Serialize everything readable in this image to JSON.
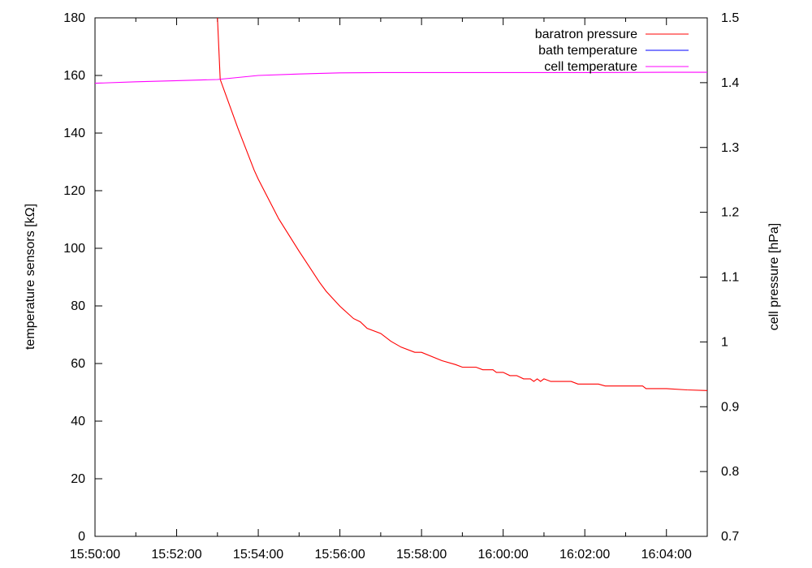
{
  "chart_data": {
    "type": "line",
    "title": "",
    "xlabel": "",
    "ylabel": "temperature sensors [kΩ]",
    "y2label": "cell pressure [hPa]",
    "x_ticks": [
      "15:50:00",
      "15:52:00",
      "15:54:00",
      "15:56:00",
      "15:58:00",
      "16:00:00",
      "16:02:00",
      "16:04:00"
    ],
    "y_ticks": [
      "0",
      "20",
      "40",
      "60",
      "80",
      "100",
      "120",
      "140",
      "160",
      "180"
    ],
    "y2_ticks": [
      "0.7",
      "0.8",
      "0.9",
      "1",
      "1.1",
      "1.2",
      "1.3",
      "1.4",
      "1.5"
    ],
    "xlim": [
      "15:50:00",
      "16:05:00"
    ],
    "ylim": [
      0,
      180
    ],
    "y2lim": [
      0.7,
      1.5
    ],
    "grid": false,
    "legend_position": "top-right",
    "series": [
      {
        "name": "baratron pressure",
        "axis": "y2",
        "color": "#ff0000",
        "points": [
          [
            "15:53:00",
            1.5
          ],
          [
            "15:53:04",
            1.405
          ],
          [
            "15:53:30",
            1.33
          ],
          [
            "15:53:54",
            1.265
          ],
          [
            "15:54:00",
            1.251
          ],
          [
            "15:54:30",
            1.19
          ],
          [
            "15:55:00",
            1.14
          ],
          [
            "15:55:30",
            1.092
          ],
          [
            "15:55:40",
            1.078
          ],
          [
            "15:56:00",
            1.055
          ],
          [
            "15:56:20",
            1.036
          ],
          [
            "15:56:30",
            1.031
          ],
          [
            "15:56:40",
            1.021
          ],
          [
            "15:57:00",
            1.013
          ],
          [
            "15:57:15",
            1.001
          ],
          [
            "15:57:30",
            0.992
          ],
          [
            "15:57:50",
            0.984
          ],
          [
            "15:58:00",
            0.984
          ],
          [
            "15:58:30",
            0.971
          ],
          [
            "15:58:50",
            0.965
          ],
          [
            "15:59:00",
            0.961
          ],
          [
            "15:59:20",
            0.961
          ],
          [
            "15:59:30",
            0.957
          ],
          [
            "15:59:45",
            0.957
          ],
          [
            "15:59:50",
            0.953
          ],
          [
            "16:00:00",
            0.953
          ],
          [
            "16:00:10",
            0.948
          ],
          [
            "16:00:20",
            0.948
          ],
          [
            "16:00:30",
            0.943
          ],
          [
            "16:00:40",
            0.943
          ],
          [
            "16:00:45",
            0.939
          ],
          [
            "16:00:50",
            0.943
          ],
          [
            "16:00:55",
            0.939
          ],
          [
            "16:01:00",
            0.943
          ],
          [
            "16:01:10",
            0.939
          ],
          [
            "16:01:20",
            0.939
          ],
          [
            "16:01:40",
            0.939
          ],
          [
            "16:01:50",
            0.935
          ],
          [
            "16:02:20",
            0.935
          ],
          [
            "16:02:30",
            0.932
          ],
          [
            "16:03:00",
            0.932
          ],
          [
            "16:03:25",
            0.932
          ],
          [
            "16:03:30",
            0.928
          ],
          [
            "16:04:00",
            0.928
          ],
          [
            "16:04:30",
            0.926
          ],
          [
            "16:05:00",
            0.925
          ]
        ]
      },
      {
        "name": "bath temperature",
        "axis": "y",
        "color": "#0000ff",
        "points": []
      },
      {
        "name": "cell temperature",
        "axis": "y",
        "color": "#ff00ff",
        "points": [
          [
            "15:50:00",
            157.3
          ],
          [
            "15:51:00",
            157.8
          ],
          [
            "15:52:00",
            158.2
          ],
          [
            "15:53:00",
            158.6
          ],
          [
            "15:54:00",
            160.0
          ],
          [
            "15:55:00",
            160.5
          ],
          [
            "15:56:00",
            160.9
          ],
          [
            "15:57:00",
            161.0
          ],
          [
            "15:58:00",
            161.0
          ],
          [
            "16:00:00",
            161.0
          ],
          [
            "16:02:00",
            161.0
          ],
          [
            "16:04:00",
            161.1
          ],
          [
            "16:05:00",
            161.1
          ]
        ]
      }
    ]
  }
}
